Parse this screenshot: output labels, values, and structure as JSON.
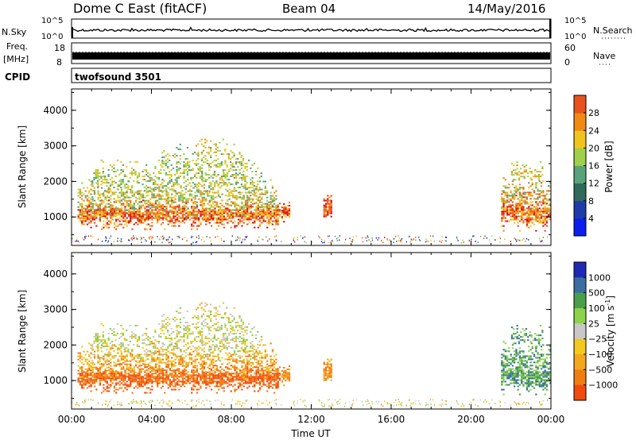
{
  "header": {
    "station": "Dome C East (fitACF)",
    "beam": "Beam 04",
    "date": "14/May/2016"
  },
  "top_panels": {
    "nsky_label": "N.Sky",
    "nsearch_label": "N.Search",
    "nsky_ticks": [
      "10^5",
      "10^0"
    ],
    "nsearch_ticks": [
      "10^5",
      "10^0"
    ],
    "freq_label_1": "Freq.",
    "freq_label_2": "[MHz]",
    "freq_ticks": [
      "18",
      "8"
    ],
    "nave_label": "Nave",
    "nave_ticks": [
      "60",
      "0"
    ],
    "cpid_label": "CPID",
    "cpid_value": "twofsound 3501"
  },
  "colors": {
    "power_scale": [
      "#0a1ef0",
      "#1e3ca8",
      "#2f6a5a",
      "#5aa37a",
      "#9ed04a",
      "#f0c41e",
      "#f08a14",
      "#e9521c",
      "#d81414"
    ],
    "velocity_scale": [
      "#e60f0f",
      "#f04c0f",
      "#f07d12",
      "#f2a71e",
      "#f2c91e",
      "#c8c8c8",
      "#8cd24a",
      "#4aa04a",
      "#3a6ea0",
      "#1e2ab4"
    ]
  },
  "chart_data": [
    {
      "type": "heatmap",
      "name": "power",
      "ylabel": "Slant Range [km]",
      "yticks": [
        "1000",
        "2000",
        "3000",
        "4000"
      ],
      "ylim": [
        200,
        4600
      ],
      "xlim": [
        0,
        24
      ],
      "colorbar_label": "Power [dB]",
      "colorbar_ticks": [
        "4",
        "8",
        "12",
        "16",
        "20",
        "24",
        "28"
      ],
      "colorbar_range": [
        0,
        32
      ]
    },
    {
      "type": "heatmap",
      "name": "velocity",
      "ylabel": "Slant Range [km]",
      "yticks": [
        "1000",
        "2000",
        "3000",
        "4000"
      ],
      "ylim": [
        200,
        4600
      ],
      "xlim": [
        0,
        24
      ],
      "xlabel": "Time UT",
      "xticks": [
        "00:00",
        "04:00",
        "08:00",
        "12:00",
        "16:00",
        "20:00",
        "00:00"
      ],
      "colorbar_label": "Velocity [m s",
      "colorbar_label_sup": "-1",
      "colorbar_label_end": "]",
      "colorbar_ticks": [
        "1000",
        "500",
        "100",
        "25",
        "−25",
        "−100",
        "−500",
        "−1000"
      ]
    }
  ]
}
